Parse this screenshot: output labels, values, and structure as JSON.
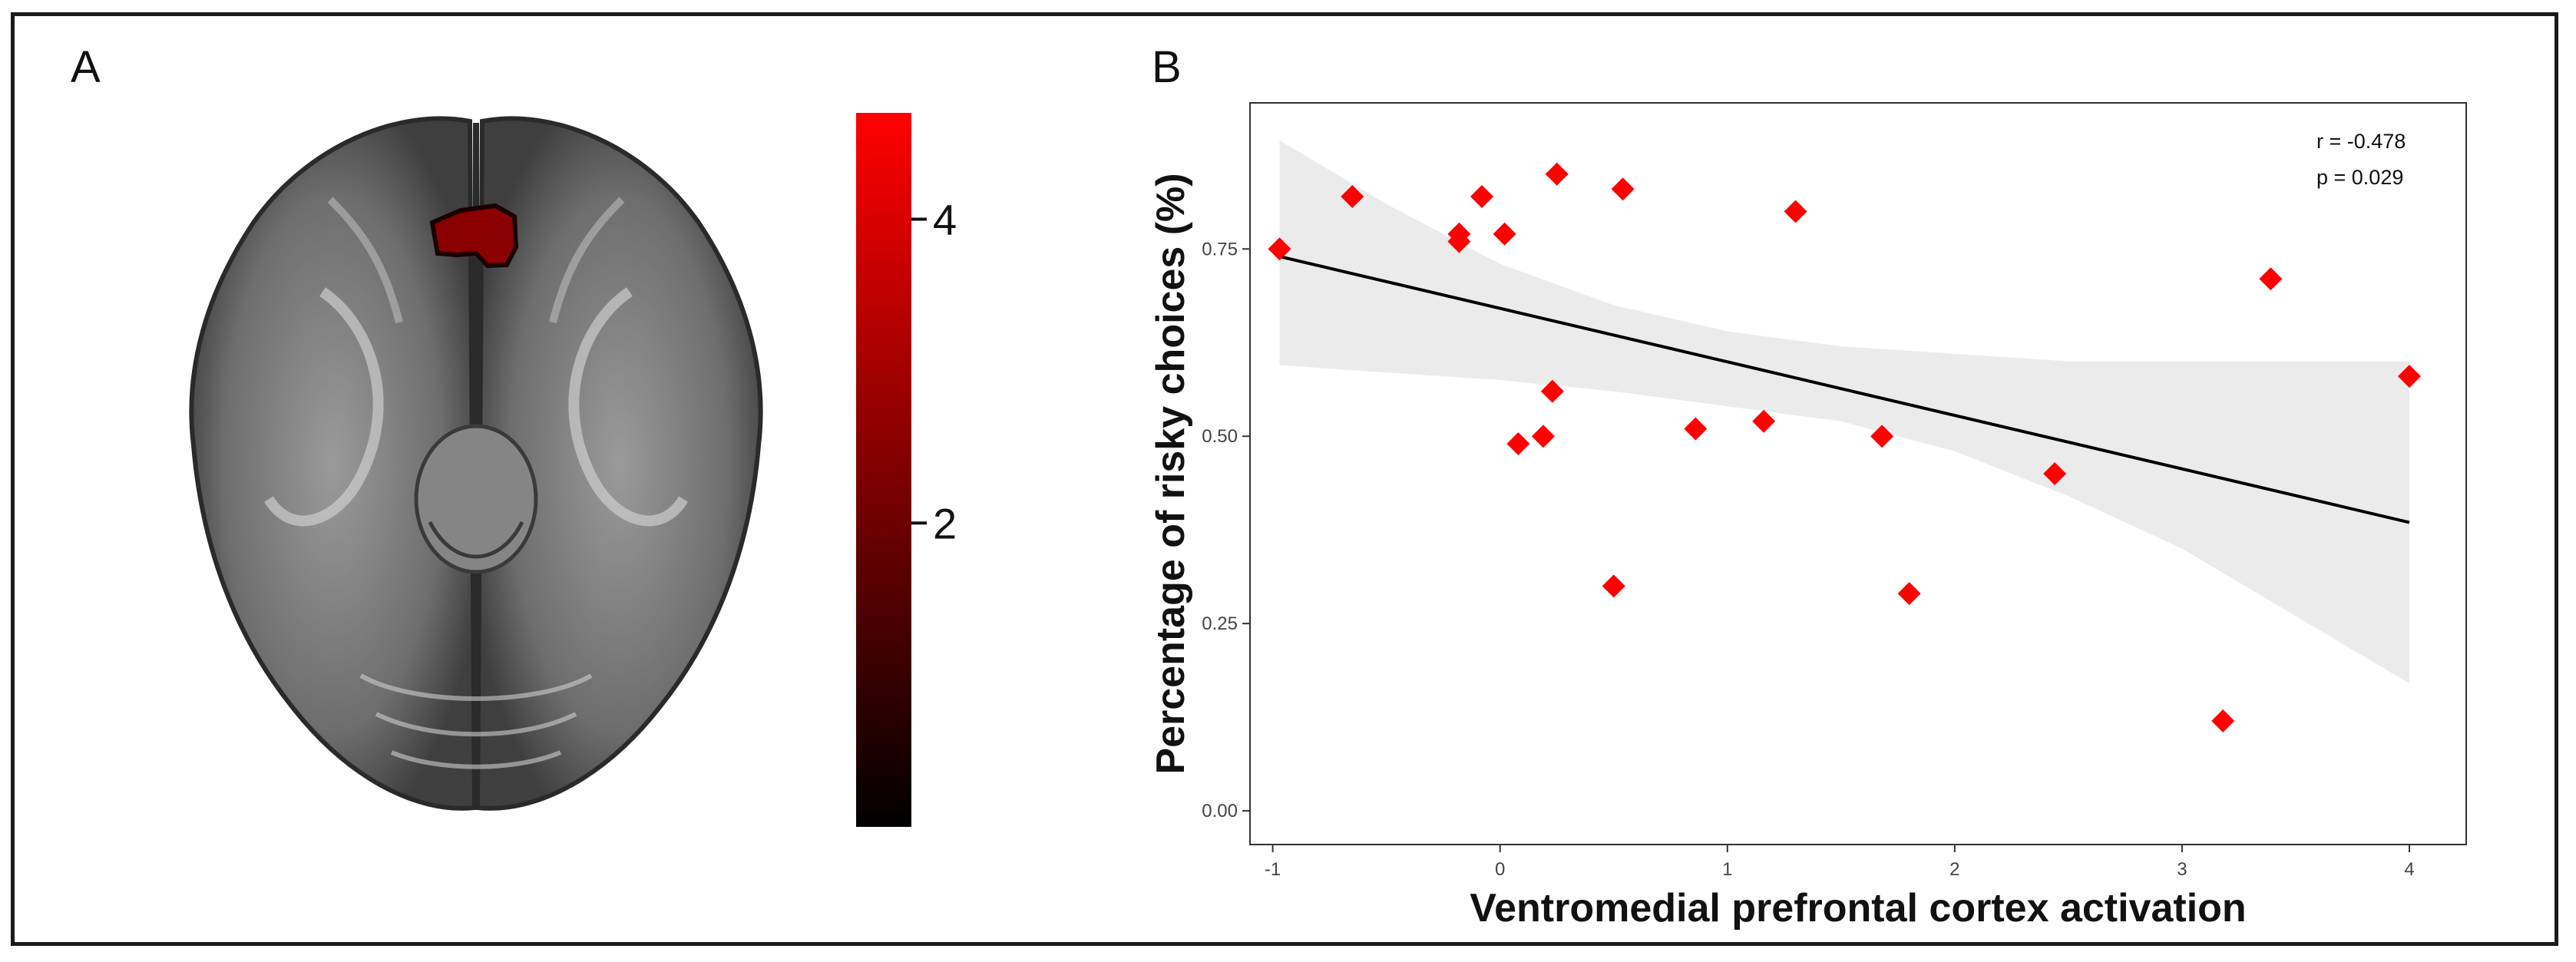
{
  "panel_a": {
    "label": "A",
    "colorbar": {
      "ticks": [
        {
          "value": 4,
          "label": "4"
        },
        {
          "value": 2,
          "label": "2"
        }
      ],
      "min": 0,
      "max": 4.7,
      "low_color": "#000000",
      "high_color": "#ff0000"
    },
    "brain_fill": "#7a7a7a",
    "activation_color": "#8b0000"
  },
  "panel_b": {
    "label": "B"
  },
  "chart_data": {
    "type": "scatter",
    "title": "",
    "xlabel": "Ventromedial prefrontal cortex activation",
    "ylabel": "Percentage of risky choices (%)",
    "xlim": [
      -1.1,
      4.25
    ],
    "ylim": [
      -0.045,
      0.945
    ],
    "xticks": [
      {
        "value": -1,
        "label": "-1"
      },
      {
        "value": 0,
        "label": "0"
      },
      {
        "value": 1,
        "label": "1"
      },
      {
        "value": 2,
        "label": "2"
      },
      {
        "value": 3,
        "label": "3"
      },
      {
        "value": 4,
        "label": "4"
      }
    ],
    "yticks": [
      {
        "value": 0,
        "label": "0.00"
      },
      {
        "value": 0.25,
        "label": "0.25"
      },
      {
        "value": 0.5,
        "label": "0.50"
      },
      {
        "value": 0.75,
        "label": "0.75"
      }
    ],
    "annotations": [
      "r = -0.478",
      "p = 0.029"
    ],
    "marker_color": "#ff0000",
    "band_color": "#ebebeb",
    "line_color": "#000000",
    "points": [
      {
        "x": -0.97,
        "y": 0.75
      },
      {
        "x": -0.65,
        "y": 0.82
      },
      {
        "x": -0.18,
        "y": 0.77
      },
      {
        "x": -0.18,
        "y": 0.76
      },
      {
        "x": -0.08,
        "y": 0.82
      },
      {
        "x": 0.02,
        "y": 0.77
      },
      {
        "x": 0.25,
        "y": 0.85
      },
      {
        "x": 0.54,
        "y": 0.83
      },
      {
        "x": 1.3,
        "y": 0.8
      },
      {
        "x": 3.39,
        "y": 0.71
      },
      {
        "x": 4.0,
        "y": 0.58
      },
      {
        "x": 0.23,
        "y": 0.56
      },
      {
        "x": 0.08,
        "y": 0.49
      },
      {
        "x": 0.19,
        "y": 0.5
      },
      {
        "x": 0.86,
        "y": 0.51
      },
      {
        "x": 1.16,
        "y": 0.52
      },
      {
        "x": 1.68,
        "y": 0.5
      },
      {
        "x": 2.44,
        "y": 0.45
      },
      {
        "x": 0.5,
        "y": 0.3
      },
      {
        "x": 1.8,
        "y": 0.29
      },
      {
        "x": 3.18,
        "y": 0.12
      }
    ],
    "regression": {
      "x": [
        -0.97,
        4.0
      ],
      "y": [
        0.74,
        0.385
      ]
    },
    "confidence_band": {
      "x": [
        -0.97,
        -0.5,
        0.0,
        0.5,
        1.0,
        1.5,
        2.0,
        2.5,
        3.0,
        3.5,
        4.0
      ],
      "upper": [
        0.895,
        0.81,
        0.73,
        0.675,
        0.64,
        0.62,
        0.61,
        0.6,
        0.6,
        0.6,
        0.6
      ],
      "lower": [
        0.595,
        0.585,
        0.575,
        0.56,
        0.54,
        0.52,
        0.48,
        0.42,
        0.35,
        0.26,
        0.17
      ]
    }
  }
}
